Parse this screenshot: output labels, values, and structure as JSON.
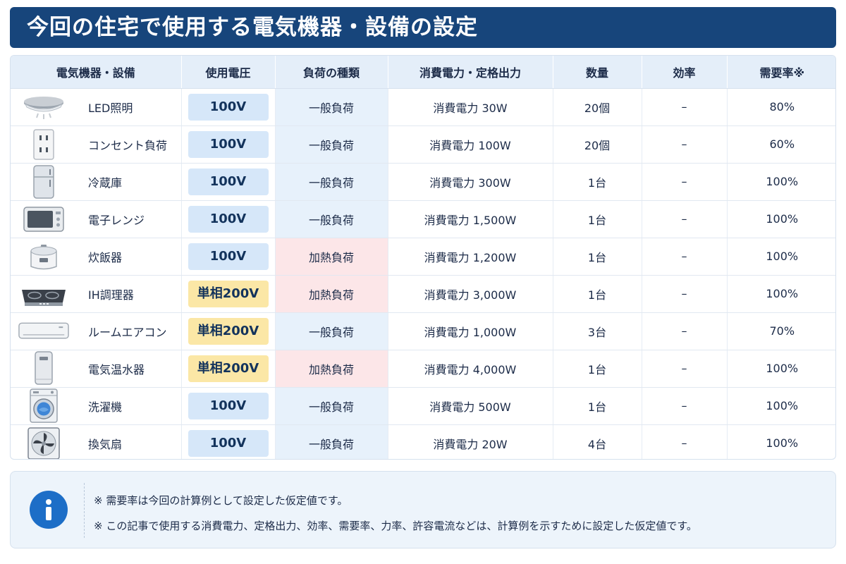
{
  "title": "今回の住宅で使用する電気機器・設備の設定",
  "colors": {
    "title_bg": "#17457b",
    "header_bg": "#e4eef9",
    "volt_100v": "#d6e7f9",
    "volt_200v": "#fbe7a6",
    "load_general": "#e7f1fb",
    "load_heating": "#fce6e8",
    "info_icon": "#1d6ec7"
  },
  "table": {
    "headers": [
      "電気機器・設備",
      "使用電圧",
      "負荷の種類",
      "消費電力・定格出力",
      "数量",
      "効率",
      "需要率※"
    ],
    "rows": [
      {
        "icon": "led-ceiling-light-icon",
        "device": "LED照明",
        "voltage": "100V",
        "load": "一般負荷",
        "power": "消費電力 30W",
        "qty": "20個",
        "efficiency": "–",
        "demand": "80%"
      },
      {
        "icon": "outlet-icon",
        "device": "コンセント負荷",
        "voltage": "100V",
        "load": "一般負荷",
        "power": "消費電力 100W",
        "qty": "20個",
        "efficiency": "–",
        "demand": "60%"
      },
      {
        "icon": "refrigerator-icon",
        "device": "冷蔵庫",
        "voltage": "100V",
        "load": "一般負荷",
        "power": "消費電力 300W",
        "qty": "1台",
        "efficiency": "–",
        "demand": "100%"
      },
      {
        "icon": "microwave-icon",
        "device": "電子レンジ",
        "voltage": "100V",
        "load": "一般負荷",
        "power": "消費電力 1,500W",
        "qty": "1台",
        "efficiency": "–",
        "demand": "100%"
      },
      {
        "icon": "rice-cooker-icon",
        "device": "炊飯器",
        "voltage": "100V",
        "load": "加熱負荷",
        "power": "消費電力 1,200W",
        "qty": "1台",
        "efficiency": "–",
        "demand": "100%"
      },
      {
        "icon": "ih-cooktop-icon",
        "device": "IH調理器",
        "voltage": "単相200V",
        "load": "加熱負荷",
        "power": "消費電力 3,000W",
        "qty": "1台",
        "efficiency": "–",
        "demand": "100%"
      },
      {
        "icon": "air-conditioner-icon",
        "device": "ルームエアコン",
        "voltage": "単相200V",
        "load": "一般負荷",
        "power": "消費電力 1,000W",
        "qty": "3台",
        "efficiency": "–",
        "demand": "70%"
      },
      {
        "icon": "water-heater-icon",
        "device": "電気温水器",
        "voltage": "単相200V",
        "load": "加熱負荷",
        "power": "消費電力 4,000W",
        "qty": "1台",
        "efficiency": "–",
        "demand": "100%"
      },
      {
        "icon": "washing-machine-icon",
        "device": "洗濯機",
        "voltage": "100V",
        "load": "一般負荷",
        "power": "消費電力 500W",
        "qty": "1台",
        "efficiency": "–",
        "demand": "100%"
      },
      {
        "icon": "ventilation-fan-icon",
        "device": "換気扇",
        "voltage": "100V",
        "load": "一般負荷",
        "power": "消費電力 20W",
        "qty": "4台",
        "efficiency": "–",
        "demand": "100%"
      }
    ]
  },
  "notes": {
    "icon": "info-icon",
    "line1": "※ 需要率は今回の計算例として設定した仮定値です。",
    "line2": "※ この記事で使用する消費電力、定格出力、効率、需要率、力率、許容電流などは、計算例を示すために設定した仮定値です。"
  }
}
